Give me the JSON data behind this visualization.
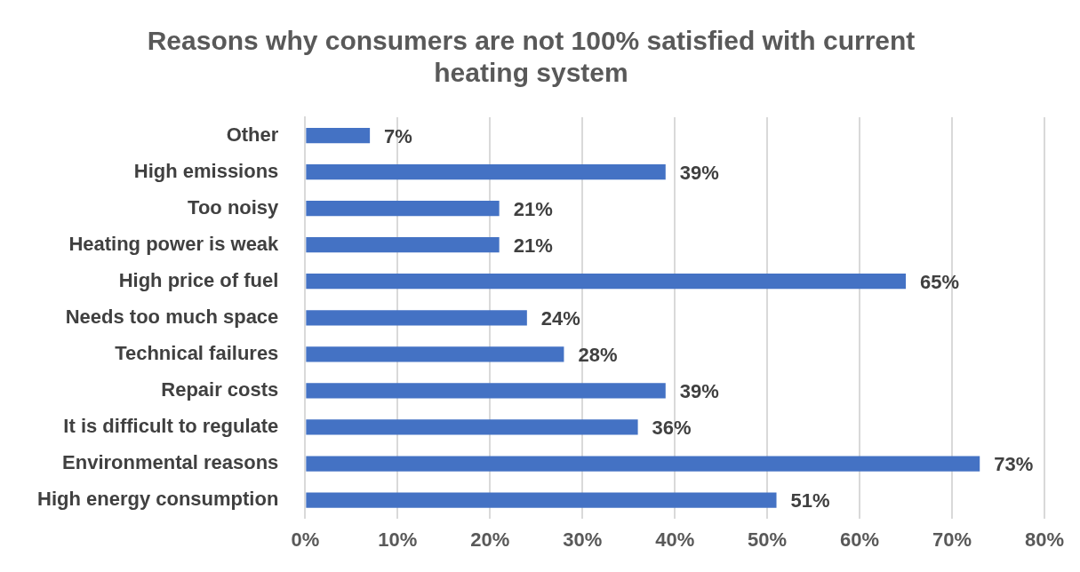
{
  "chart_data": {
    "type": "bar",
    "orientation": "horizontal",
    "title": "Reasons why consumers are not 100% satisfied with current heating system",
    "categories": [
      "Other",
      "High emissions",
      "Too noisy",
      "Heating power is weak",
      "High price of fuel",
      "Needs too much space",
      "Technical failures",
      "Repair costs",
      "It is difficult to regulate",
      "Environmental reasons",
      "High energy consumption"
    ],
    "values": [
      7,
      39,
      21,
      21,
      65,
      24,
      28,
      39,
      36,
      73,
      51
    ],
    "value_labels": [
      "7%",
      "39%",
      "21%",
      "21%",
      "65%",
      "24%",
      "28%",
      "39%",
      "36%",
      "73%",
      "51%"
    ],
    "color": "#4472c4",
    "xlim": [
      0,
      80
    ],
    "xticks": [
      {
        "value": 0,
        "label": "0%"
      },
      {
        "value": 10,
        "label": "10%"
      },
      {
        "value": 20,
        "label": "20%"
      },
      {
        "value": 30,
        "label": "30%"
      },
      {
        "value": 40,
        "label": "40%"
      },
      {
        "value": 50,
        "label": "50%"
      },
      {
        "value": 60,
        "label": "60%"
      },
      {
        "value": 70,
        "label": "70%"
      },
      {
        "value": 80,
        "label": "80%"
      }
    ],
    "grid": "x",
    "legend": false
  }
}
